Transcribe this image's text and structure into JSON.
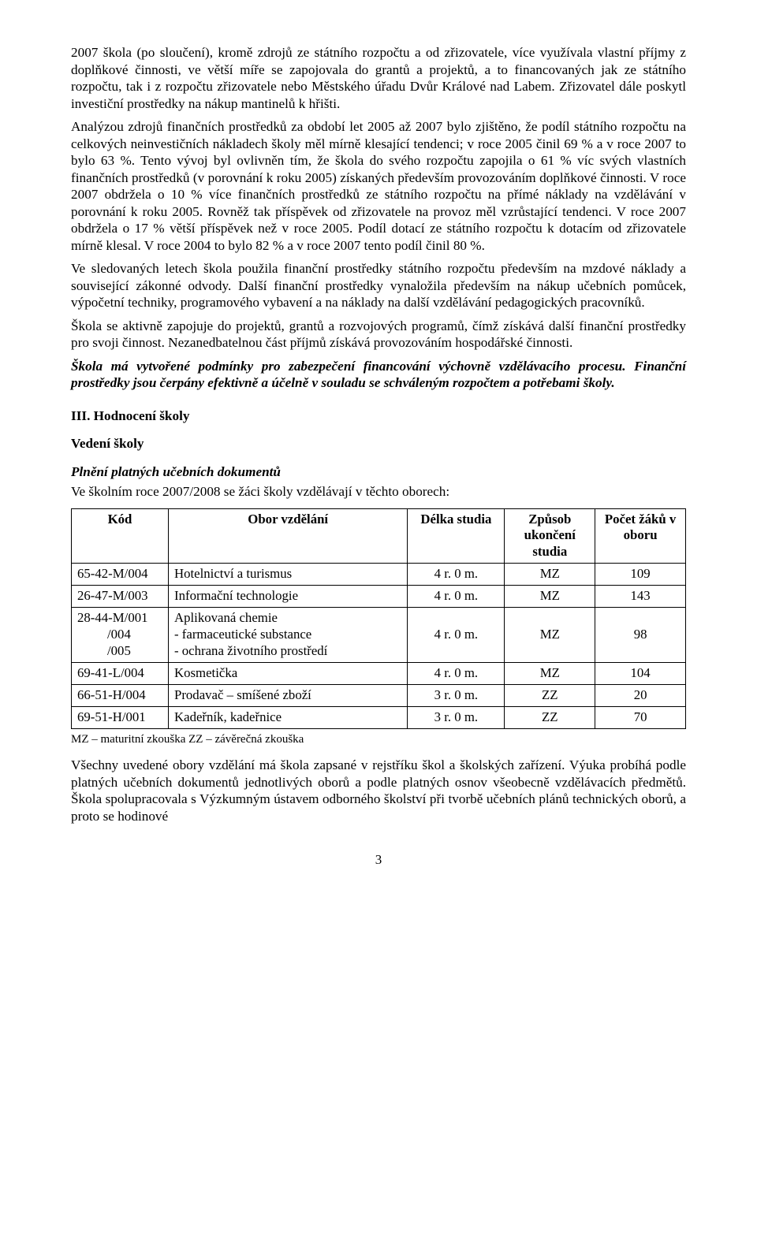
{
  "paragraphs": {
    "p1": "2007 škola (po sloučení), kromě zdrojů ze státního rozpočtu a od zřizovatele, více využívala vlastní příjmy z doplňkové činnosti, ve větší míře se zapojovala do grantů a projektů, a to financovaných jak ze státního rozpočtu, tak i z rozpočtu zřizovatele nebo Městského úřadu Dvůr Králové nad Labem. Zřizovatel dále poskytl investiční prostředky na nákup mantinelů k hřišti.",
    "p2": "Analýzou zdrojů finančních prostředků za období let 2005 až 2007 bylo zjištěno, že podíl státního rozpočtu na celkových neinvestičních nákladech školy měl mírně klesající tendenci; v roce 2005 činil 69 % a v roce 2007 to bylo 63 %. Tento vývoj byl ovlivněn tím, že škola do svého rozpočtu zapojila o 61 % víc svých vlastních finančních prostředků (v porovnání k roku 2005) získaných především provozováním doplňkové činnosti. V roce 2007 obdržela o 10 % více finančních prostředků ze státního rozpočtu na přímé náklady na vzdělávání v porovnání k roku 2005. Rovněž tak příspěvek od zřizovatele na provoz měl vzrůstající tendenci. V roce 2007 obdržela o 17 % větší příspěvek než v roce 2005. Podíl dotací ze státního rozpočtu k dotacím od zřizovatele mírně klesal. V roce 2004 to bylo 82 % a v roce 2007 tento podíl činil 80 %.",
    "p3": "Ve sledovaných letech škola použila finanční prostředky státního rozpočtu především na mzdové náklady a související zákonné odvody. Další finanční prostředky vynaložila především na nákup učebních pomůcek, výpočetní techniky, programového vybavení a na náklady na další vzdělávání pedagogických pracovníků.",
    "p4": "Škola se aktivně zapojuje do projektů, grantů a rozvojových programů, čímž získává další finanční prostředky pro svoji činnost. Nezanedbatelnou část příjmů získává provozováním hospodářské činnosti.",
    "p5": "Škola má vytvořené podmínky pro zabezpečení financování výchovně vzdělávacího procesu. Finanční prostředky jsou čerpány efektivně a účelně v souladu se schváleným rozpočtem a potřebami školy."
  },
  "headings": {
    "section": "III. Hodnocení školy",
    "sub": "Vedení školy",
    "italicSub": "Plnění platných učebních dokumentů",
    "lead": "Ve školním roce 2007/2008 se žáci školy vzdělávají v těchto oborech:"
  },
  "table": {
    "headers": {
      "kod": "Kód",
      "obor": "Obor vzdělání",
      "delka": "Délka studia",
      "zpusob": "Způsob ukončení studia",
      "pocet": "Počet žáků v oboru"
    },
    "rows": [
      {
        "kod": "65-42-M/004",
        "obor": "Hotelnictví a turismus",
        "delka": "4 r. 0 m.",
        "zpusob": "MZ",
        "pocet": "109"
      },
      {
        "kod": "26-47-M/003",
        "obor": "Informační technologie",
        "delka": "4 r. 0 m.",
        "zpusob": "MZ",
        "pocet": "143"
      },
      {
        "kod": "28-44-M/001",
        "kod2": "/004",
        "kod3": "/005",
        "obor": "Aplikovaná chemie",
        "obor2": "- farmaceutické substance",
        "obor3": "- ochrana životního prostředí",
        "delka": "4 r. 0 m.",
        "zpusob": "MZ",
        "pocet": "98"
      },
      {
        "kod": "69-41-L/004",
        "obor": "Kosmetička",
        "delka": "4 r. 0 m.",
        "zpusob": "MZ",
        "pocet": "104"
      },
      {
        "kod": "66-51-H/004",
        "obor": "Prodavač – smíšené zboží",
        "delka": "3 r. 0 m.",
        "zpusob": "ZZ",
        "pocet": "20"
      },
      {
        "kod": "69-51-H/001",
        "obor": "Kadeřník, kadeřnice",
        "delka": "3 r. 0 m.",
        "zpusob": "ZZ",
        "pocet": "70"
      }
    ],
    "legend": "MZ – maturitní zkouška   ZZ – závěrečná zkouška"
  },
  "closing": "Všechny uvedené obory vzdělání má škola zapsané v rejstříku škol a školských zařízení. Výuka probíhá podle platných učebních dokumentů jednotlivých oborů a podle platných osnov všeobecně vzdělávacích předmětů. Škola spolupracovala s Výzkumným ústavem odborného školství při tvorbě učebních plánů technických oborů, a proto se hodinové",
  "pageNumber": "3"
}
